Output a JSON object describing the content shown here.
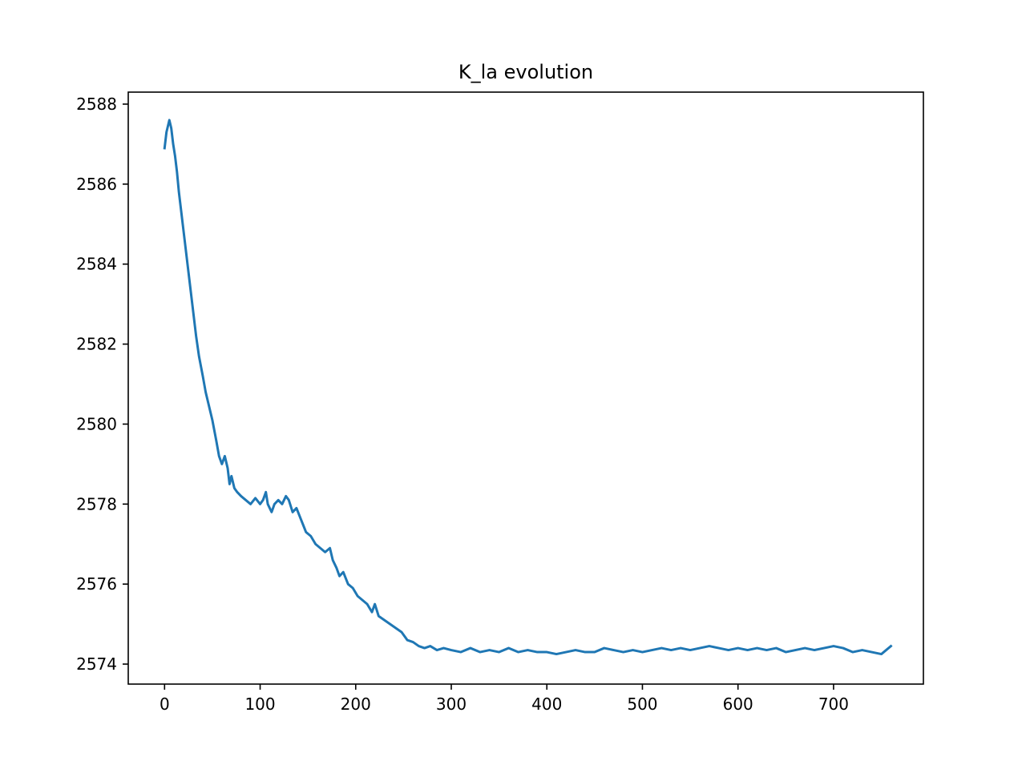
{
  "chart_data": {
    "type": "line",
    "title": "K_la evolution",
    "xlabel": "",
    "ylabel": "",
    "xlim": [
      -38,
      794
    ],
    "ylim": [
      2573.5,
      2588.3
    ],
    "xticks": [
      0,
      100,
      200,
      300,
      400,
      500,
      600,
      700
    ],
    "yticks": [
      2574,
      2576,
      2578,
      2580,
      2582,
      2584,
      2586,
      2588
    ],
    "xtick_labels": [
      "0",
      "100",
      "200",
      "300",
      "400",
      "500",
      "600",
      "700"
    ],
    "ytick_labels": [
      "2574",
      "2576",
      "2578",
      "2580",
      "2582",
      "2584",
      "2586",
      "2588"
    ],
    "grid": false,
    "series": [
      {
        "name": "K_la",
        "color": "#1f77b4",
        "x": [
          0,
          2,
          4,
          5,
          7,
          9,
          11,
          13,
          15,
          17,
          19,
          21,
          24,
          27,
          30,
          33,
          36,
          40,
          43,
          47,
          50,
          54,
          57,
          60,
          63,
          66,
          68,
          70,
          73,
          76,
          80,
          85,
          90,
          95,
          100,
          103,
          106,
          108,
          112,
          115,
          119,
          123,
          127,
          130,
          134,
          138,
          143,
          148,
          153,
          158,
          163,
          168,
          173,
          176,
          180,
          183,
          187,
          192,
          197,
          202,
          207,
          212,
          217,
          220,
          224,
          230,
          236,
          242,
          248,
          254,
          260,
          266,
          272,
          278,
          285,
          292,
          300,
          310,
          320,
          330,
          340,
          350,
          360,
          370,
          380,
          390,
          400,
          410,
          420,
          430,
          440,
          450,
          460,
          470,
          480,
          490,
          500,
          510,
          520,
          530,
          540,
          550,
          560,
          570,
          580,
          590,
          600,
          610,
          620,
          630,
          640,
          650,
          660,
          670,
          680,
          690,
          700,
          710,
          720,
          730,
          740,
          750,
          755,
          760
        ],
        "y": [
          2586.9,
          2587.3,
          2587.5,
          2587.6,
          2587.4,
          2587.0,
          2586.7,
          2586.3,
          2585.8,
          2585.4,
          2585.0,
          2584.6,
          2584.0,
          2583.4,
          2582.8,
          2582.2,
          2581.7,
          2581.2,
          2580.8,
          2580.4,
          2580.1,
          2579.6,
          2579.2,
          2579.0,
          2579.2,
          2578.9,
          2578.5,
          2578.7,
          2578.4,
          2578.3,
          2578.2,
          2578.1,
          2578.0,
          2578.15,
          2578.0,
          2578.1,
          2578.3,
          2578.0,
          2577.8,
          2578.0,
          2578.1,
          2578.0,
          2578.2,
          2578.1,
          2577.8,
          2577.9,
          2577.6,
          2577.3,
          2577.2,
          2577.0,
          2576.9,
          2576.8,
          2576.9,
          2576.6,
          2576.4,
          2576.2,
          2576.3,
          2576.0,
          2575.9,
          2575.7,
          2575.6,
          2575.5,
          2575.3,
          2575.5,
          2575.2,
          2575.1,
          2575.0,
          2574.9,
          2574.8,
          2574.6,
          2574.55,
          2574.45,
          2574.4,
          2574.45,
          2574.35,
          2574.4,
          2574.35,
          2574.3,
          2574.4,
          2574.3,
          2574.35,
          2574.3,
          2574.4,
          2574.3,
          2574.35,
          2574.3,
          2574.3,
          2574.25,
          2574.3,
          2574.35,
          2574.3,
          2574.3,
          2574.4,
          2574.35,
          2574.3,
          2574.35,
          2574.3,
          2574.35,
          2574.4,
          2574.35,
          2574.4,
          2574.35,
          2574.4,
          2574.45,
          2574.4,
          2574.35,
          2574.4,
          2574.35,
          2574.4,
          2574.35,
          2574.4,
          2574.3,
          2574.35,
          2574.4,
          2574.35,
          2574.4,
          2574.45,
          2574.4,
          2574.3,
          2574.35,
          2574.3,
          2574.25,
          2574.35,
          2574.45
        ]
      }
    ]
  }
}
